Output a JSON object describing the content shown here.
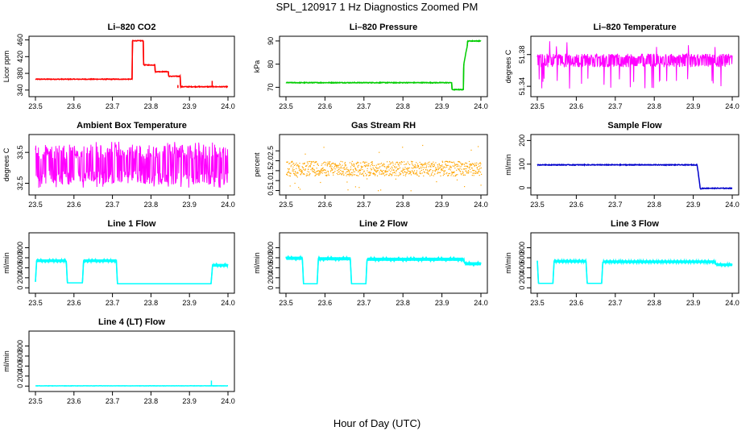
{
  "title": "SPL_120917  1 Hz Diagnostics Zoomed PM",
  "xlabel": "Hour of Day (UTC)",
  "chart_data": [
    {
      "type": "line",
      "title": "Li–820 CO2",
      "ylabel": "Licor ppm",
      "color": "#ff0000",
      "xlim": [
        23.5,
        24.0
      ],
      "ylim": [
        330,
        463
      ],
      "x_ticks": [
        "23.5",
        "23.6",
        "23.7",
        "23.8",
        "23.9",
        "24.0"
      ],
      "y_ticks": [
        {
          "v": 340,
          "t": "340"
        },
        {
          "v": 380,
          "t": "380"
        },
        {
          "v": 420,
          "t": "420"
        },
        {
          "v": 460,
          "t": "460"
        }
      ],
      "noise": 0.8,
      "series": [
        {
          "x": [
            23.5,
            23.751,
            23.752,
            23.78,
            23.781,
            23.81,
            23.811,
            23.845,
            23.846,
            23.85,
            23.85,
            23.851,
            23.876,
            23.877,
            24.0
          ],
          "y": [
            366,
            366,
            458,
            458,
            400,
            400,
            384,
            384,
            373,
            373,
            373,
            373,
            373,
            348,
            348
          ]
        }
      ],
      "spikes": [
        {
          "x": 23.959,
          "y0": 348,
          "y1": 362
        },
        {
          "x": 23.87,
          "y0": 345,
          "y1": 352
        }
      ]
    },
    {
      "type": "line",
      "title": "Li–820 Pressure",
      "ylabel": "kPa",
      "color": "#00cc00",
      "xlim": [
        23.5,
        24.0
      ],
      "ylim": [
        67,
        91
      ],
      "x_ticks": [
        "23.5",
        "23.6",
        "23.7",
        "23.8",
        "23.9",
        "24.0"
      ],
      "y_ticks": [
        {
          "v": 70,
          "t": "70"
        },
        {
          "v": 80,
          "t": "80"
        },
        {
          "v": 90,
          "t": "90"
        }
      ],
      "noise": 0.15,
      "series": [
        {
          "x": [
            23.5,
            23.925,
            23.926,
            23.955,
            23.956,
            23.965,
            23.966,
            24.0
          ],
          "y": [
            72,
            72,
            69,
            69,
            80,
            88,
            90,
            90
          ]
        }
      ],
      "spikes": []
    },
    {
      "type": "line",
      "title": "Li–820 Temperature",
      "ylabel": "degrees C",
      "color": "#ff00ff",
      "xlim": [
        23.5,
        24.0
      ],
      "ylim": [
        51.33,
        51.4
      ],
      "x_ticks": [
        "23.5",
        "23.6",
        "23.7",
        "23.8",
        "23.9",
        "24.0"
      ],
      "y_ticks": [
        {
          "v": 51.34,
          "t": "51.34"
        },
        {
          "v": 51.38,
          "t": "51.38"
        }
      ],
      "band": {
        "lo": 51.364,
        "hi": 51.381,
        "dips_to": 51.337,
        "peaks_to": 51.397
      },
      "series": []
    },
    {
      "type": "line",
      "title": "Ambient Box Temperature",
      "ylabel": "degrees C",
      "color": "#ff00ff",
      "xlim": [
        23.5,
        24.0
      ],
      "ylim": [
        32.2,
        34.0
      ],
      "x_ticks": [
        "23.5",
        "23.6",
        "23.7",
        "23.8",
        "23.9",
        "24.0"
      ],
      "y_ticks": [
        {
          "v": 32.5,
          "t": "32.5"
        },
        {
          "v": 33.5,
          "t": "33.5"
        }
      ],
      "band": {
        "lo": 32.45,
        "hi": 33.75,
        "dips_to": 32.35,
        "peaks_to": 33.85
      },
      "series": []
    },
    {
      "type": "scatter",
      "title": "Gas Stream RH",
      "ylabel": "percent",
      "color": "#ffa500",
      "xlim": [
        23.5,
        24.0
      ],
      "ylim": [
        0.4,
        3.2
      ],
      "x_ticks": [
        "23.5",
        "23.6",
        "23.7",
        "23.8",
        "23.9",
        "24.0"
      ],
      "y_ticks": [
        {
          "v": 0.5,
          "t": "0.5"
        },
        {
          "v": 1.0,
          "t": "1.0"
        },
        {
          "v": 1.5,
          "t": "1.5"
        },
        {
          "v": 2.0,
          "t": "2.0"
        },
        {
          "v": 2.5,
          "t": "2.5"
        }
      ],
      "band": {
        "lo": 1.25,
        "hi": 2.0,
        "dips_to": 0.5,
        "peaks_to": 2.9
      },
      "series": []
    },
    {
      "type": "line",
      "title": "Sample Flow",
      "ylabel": "ml/min",
      "color": "#0000cc",
      "xlim": [
        23.5,
        24.0
      ],
      "ylim": [
        -20,
        215
      ],
      "x_ticks": [
        "23.5",
        "23.6",
        "23.7",
        "23.8",
        "23.9",
        "24.0"
      ],
      "y_ticks": [
        {
          "v": 0,
          "t": "0"
        },
        {
          "v": 100,
          "t": "100"
        },
        {
          "v": 200,
          "t": "200"
        }
      ],
      "noise": 1.5,
      "series": [
        {
          "x": [
            23.5,
            23.91,
            23.918,
            23.925,
            24.0
          ],
          "y": [
            97,
            97,
            -5,
            -2,
            -2
          ]
        }
      ],
      "spikes": []
    },
    {
      "type": "line",
      "title": "Line 1 Flow",
      "ylabel": "ml/min",
      "color": "#00ffff",
      "xlim": [
        23.5,
        24.0
      ],
      "ylim": [
        -60,
        1050
      ],
      "x_ticks": [
        "23.5",
        "23.6",
        "23.7",
        "23.8",
        "23.9",
        "24.0"
      ],
      "y_ticks": [
        {
          "v": 0,
          "t": "0"
        },
        {
          "v": 200,
          "t": "200"
        },
        {
          "v": 400,
          "t": "400"
        },
        {
          "v": 600,
          "t": "600"
        },
        {
          "v": 800,
          "t": "800"
        }
      ],
      "osc": {
        "amp": 25
      },
      "series": [
        {
          "x": [
            23.5,
            23.503,
            23.58,
            23.583,
            23.622,
            23.625,
            23.71,
            23.713,
            23.956,
            23.96,
            24.0
          ],
          "y": [
            120,
            540,
            540,
            100,
            100,
            540,
            540,
            80,
            80,
            450,
            450
          ]
        }
      ],
      "spikes": []
    },
    {
      "type": "line",
      "title": "Line 2 Flow",
      "ylabel": "ml/min",
      "color": "#00ffff",
      "xlim": [
        23.5,
        24.0
      ],
      "ylim": [
        -60,
        1050
      ],
      "x_ticks": [
        "23.5",
        "23.6",
        "23.7",
        "23.8",
        "23.9",
        "24.0"
      ],
      "y_ticks": [
        {
          "v": 0,
          "t": "0"
        },
        {
          "v": 200,
          "t": "200"
        },
        {
          "v": 400,
          "t": "400"
        },
        {
          "v": 600,
          "t": "600"
        },
        {
          "v": 800,
          "t": "800"
        }
      ],
      "osc": {
        "amp": 30
      },
      "series": [
        {
          "x": [
            23.5,
            23.542,
            23.545,
            23.58,
            23.583,
            23.665,
            23.668,
            23.705,
            23.708,
            23.955,
            23.96,
            24.0
          ],
          "y": [
            590,
            590,
            80,
            80,
            580,
            580,
            80,
            80,
            570,
            570,
            480,
            480
          ]
        }
      ],
      "spikes": []
    },
    {
      "type": "line",
      "title": "Line 3 Flow",
      "ylabel": "ml/min",
      "color": "#00ffff",
      "xlim": [
        23.5,
        24.0
      ],
      "ylim": [
        -60,
        1050
      ],
      "x_ticks": [
        "23.5",
        "23.6",
        "23.7",
        "23.8",
        "23.9",
        "24.0"
      ],
      "y_ticks": [
        {
          "v": 0,
          "t": "0"
        },
        {
          "v": 200,
          "t": "200"
        },
        {
          "v": 400,
          "t": "400"
        },
        {
          "v": 600,
          "t": "600"
        },
        {
          "v": 800,
          "t": "800"
        }
      ],
      "osc": {
        "amp": 25
      },
      "series": [
        {
          "x": [
            23.5,
            23.503,
            23.54,
            23.543,
            23.625,
            23.628,
            23.665,
            23.668,
            23.955,
            23.96,
            24.0
          ],
          "y": [
            540,
            90,
            90,
            530,
            530,
            90,
            90,
            520,
            520,
            460,
            460
          ]
        }
      ],
      "spikes": []
    },
    {
      "type": "line",
      "title": "Line 4 (LT) Flow",
      "ylabel": "ml/min",
      "color": "#00ffff",
      "xlim": [
        23.5,
        24.0
      ],
      "ylim": [
        -60,
        1050
      ],
      "x_ticks": [
        "23.5",
        "23.6",
        "23.7",
        "23.8",
        "23.9",
        "24.0"
      ],
      "y_ticks": [
        {
          "v": 0,
          "t": "0"
        },
        {
          "v": 200,
          "t": "200"
        },
        {
          "v": 400,
          "t": "400"
        },
        {
          "v": 600,
          "t": "600"
        },
        {
          "v": 800,
          "t": "800"
        }
      ],
      "noise": 2,
      "series": [
        {
          "x": [
            23.5,
            24.0
          ],
          "y": [
            5,
            5
          ]
        }
      ],
      "spikes": [
        {
          "x": 23.957,
          "y0": 5,
          "y1": 110
        }
      ]
    }
  ]
}
